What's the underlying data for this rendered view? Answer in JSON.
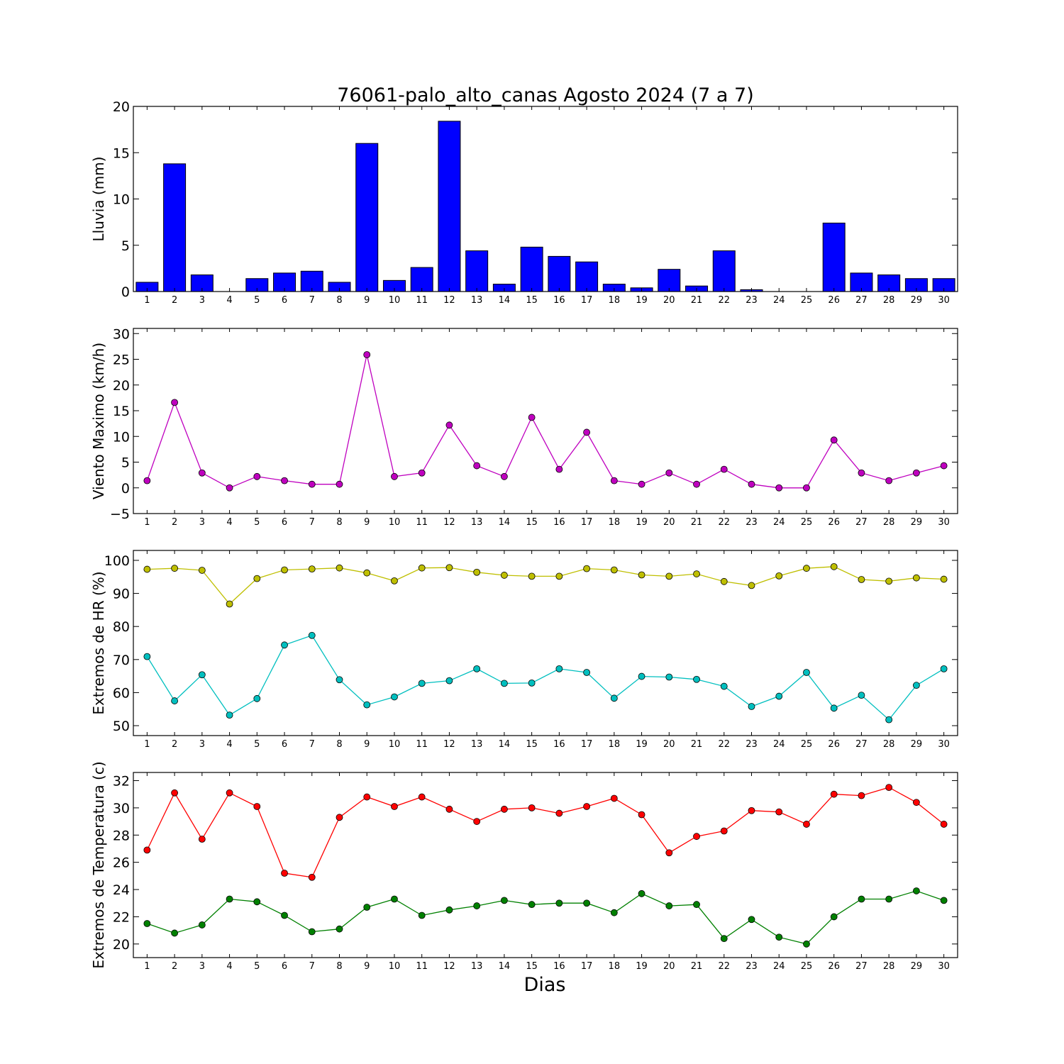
{
  "figure": {
    "title": "76061-palo_alto_canas Agosto 2024  (7 a 7)",
    "xlabel": "Dias"
  },
  "chart_data": [
    {
      "type": "bar",
      "ylabel": "Lluvia (mm)",
      "ylim": [
        0,
        20
      ],
      "yticks": [
        0,
        5,
        10,
        15,
        20
      ],
      "categories": [
        1,
        2,
        3,
        4,
        5,
        6,
        7,
        8,
        9,
        10,
        11,
        12,
        13,
        14,
        15,
        16,
        17,
        18,
        19,
        20,
        21,
        22,
        23,
        24,
        25,
        26,
        27,
        28,
        29,
        30
      ],
      "series": [
        {
          "color": "#0000ff",
          "values": [
            1.0,
            13.8,
            1.8,
            0.0,
            1.4,
            2.0,
            2.2,
            1.0,
            16.0,
            1.2,
            2.6,
            18.4,
            4.4,
            0.8,
            4.8,
            3.8,
            3.2,
            0.8,
            0.4,
            2.4,
            0.6,
            4.4,
            0.2,
            0.0,
            0.0,
            7.4,
            2.0,
            1.8,
            1.4,
            1.4
          ]
        }
      ]
    },
    {
      "type": "line",
      "ylabel": "Viento Maximo (km/h)",
      "ylim": [
        -5,
        31
      ],
      "yticks": [
        -5,
        0,
        5,
        10,
        15,
        20,
        25,
        30
      ],
      "categories": [
        1,
        2,
        3,
        4,
        5,
        6,
        7,
        8,
        9,
        10,
        11,
        12,
        13,
        14,
        15,
        16,
        17,
        18,
        19,
        20,
        21,
        22,
        23,
        24,
        25,
        26,
        27,
        28,
        29,
        30
      ],
      "series": [
        {
          "color": "#bf00bf",
          "values": [
            1.4,
            16.6,
            2.9,
            0.0,
            2.2,
            1.4,
            0.7,
            0.7,
            25.9,
            2.2,
            2.9,
            12.2,
            4.3,
            2.2,
            13.7,
            3.6,
            10.8,
            1.4,
            0.7,
            2.9,
            0.7,
            3.6,
            0.7,
            0.0,
            0.0,
            9.3,
            2.9,
            1.4,
            2.9,
            4.3
          ]
        }
      ]
    },
    {
      "type": "line",
      "ylabel": "Extremos de HR (%)",
      "ylim": [
        47,
        103
      ],
      "yticks": [
        50,
        60,
        70,
        80,
        90,
        100
      ],
      "categories": [
        1,
        2,
        3,
        4,
        5,
        6,
        7,
        8,
        9,
        10,
        11,
        12,
        13,
        14,
        15,
        16,
        17,
        18,
        19,
        20,
        21,
        22,
        23,
        24,
        25,
        26,
        27,
        28,
        29,
        30
      ],
      "series": [
        {
          "color": "#bfbf00",
          "values": [
            97.3,
            97.6,
            97.0,
            86.8,
            94.5,
            97.1,
            97.4,
            97.7,
            96.2,
            93.8,
            97.7,
            97.8,
            96.4,
            95.5,
            95.2,
            95.2,
            97.5,
            97.1,
            95.6,
            95.2,
            95.9,
            93.6,
            92.4,
            95.3,
            97.6,
            98.1,
            94.2,
            93.7,
            94.7,
            94.3
          ]
        },
        {
          "color": "#00bfbf",
          "values": [
            70.9,
            57.5,
            65.4,
            53.2,
            58.2,
            74.4,
            77.3,
            63.9,
            56.3,
            58.7,
            62.8,
            63.6,
            67.2,
            62.8,
            62.9,
            67.2,
            66.1,
            58.3,
            64.9,
            64.7,
            64.0,
            61.9,
            55.8,
            58.9,
            66.1,
            55.3,
            59.2,
            51.8,
            62.2,
            67.2
          ]
        }
      ]
    },
    {
      "type": "line",
      "ylabel": "Extremos de Temperatura (c)",
      "ylim": [
        19,
        32.6
      ],
      "yticks": [
        20,
        22,
        24,
        26,
        28,
        30,
        32
      ],
      "categories": [
        1,
        2,
        3,
        4,
        5,
        6,
        7,
        8,
        9,
        10,
        11,
        12,
        13,
        14,
        15,
        16,
        17,
        18,
        19,
        20,
        21,
        22,
        23,
        24,
        25,
        26,
        27,
        28,
        29,
        30
      ],
      "series": [
        {
          "color": "#ff0000",
          "values": [
            26.9,
            31.1,
            27.7,
            31.1,
            30.1,
            25.2,
            24.9,
            29.3,
            30.8,
            30.1,
            30.8,
            29.9,
            29.0,
            29.9,
            30.0,
            29.6,
            30.1,
            30.7,
            29.5,
            26.7,
            27.9,
            28.3,
            29.8,
            29.7,
            28.8,
            31.0,
            30.9,
            31.5,
            30.4,
            28.8
          ]
        },
        {
          "color": "#008000",
          "values": [
            21.5,
            20.8,
            21.4,
            23.3,
            23.1,
            22.1,
            20.9,
            21.1,
            22.7,
            23.3,
            22.1,
            22.5,
            22.8,
            23.2,
            22.9,
            23.0,
            23.0,
            22.3,
            23.7,
            22.8,
            22.9,
            20.4,
            21.8,
            20.5,
            20.0,
            22.0,
            23.3,
            23.3,
            23.9,
            23.2
          ]
        }
      ]
    }
  ]
}
